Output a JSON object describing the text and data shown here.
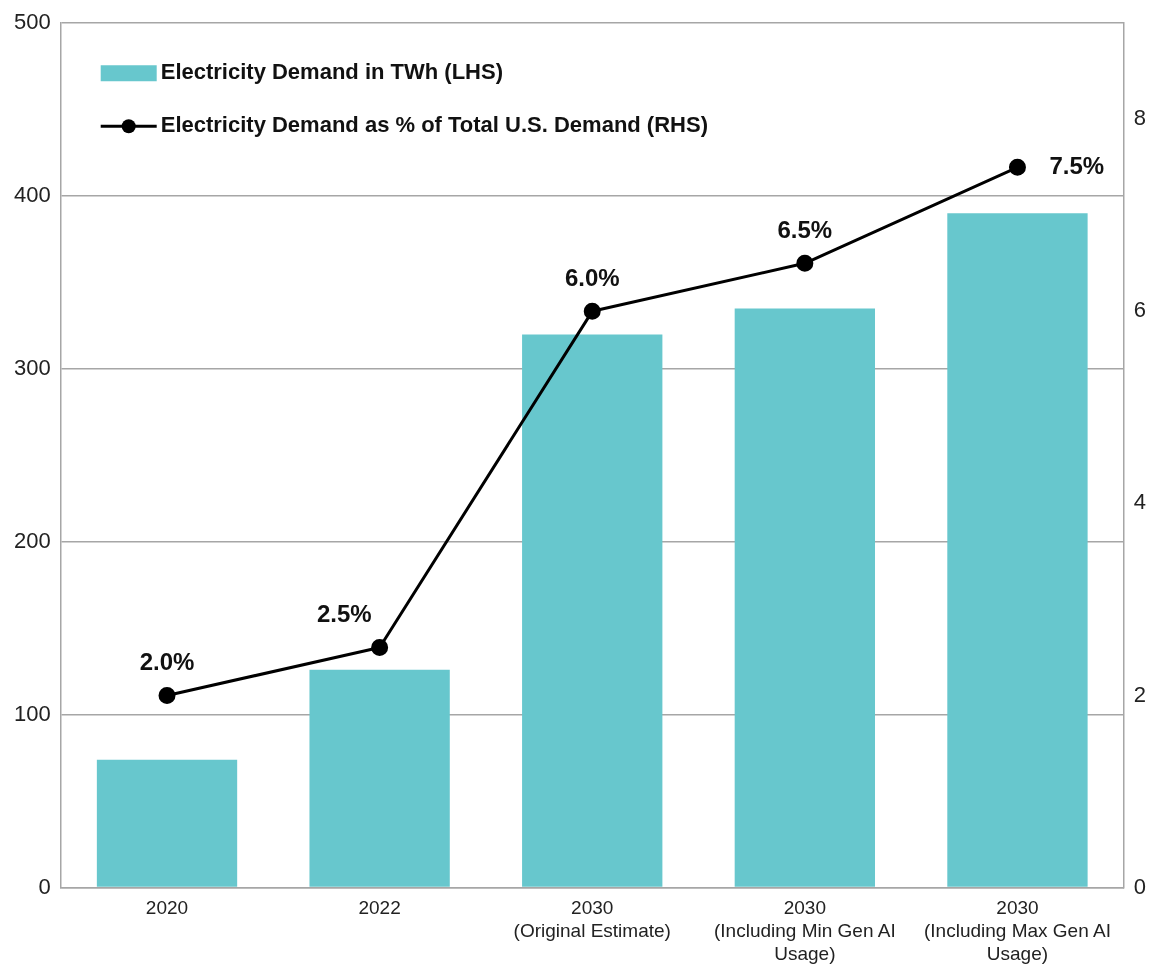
{
  "chart_data": {
    "type": "bar",
    "categories": [
      "2020",
      "2022",
      "2030 (Original Estimate)",
      "2030 (Including Min Gen AI Usage)",
      "2030 (Including Max Gen AI Usage)"
    ],
    "series": [
      {
        "name": "Electricity Demand in TWh (LHS)",
        "color": "#67c7cd",
        "values": [
          74,
          126,
          320,
          335,
          390
        ]
      },
      {
        "name": "Electricity Demand as % of Total U.S. Demand (RHS)",
        "type": "line",
        "axis": "y2",
        "color": "#000000",
        "marker": "circle",
        "values": [
          2.0,
          2.5,
          6.0,
          6.5,
          7.5
        ],
        "value_labels": [
          "2.0%",
          "2.5%",
          "6.0%",
          "6.5%",
          "7.5%"
        ]
      }
    ],
    "ylim": [
      0,
      500
    ],
    "yticks": [
      0,
      100,
      200,
      300,
      400,
      500
    ],
    "y2lim": [
      0,
      9
    ],
    "y2ticks": [
      0,
      2,
      4,
      6,
      8
    ],
    "grid": "y",
    "legend": "top left"
  }
}
